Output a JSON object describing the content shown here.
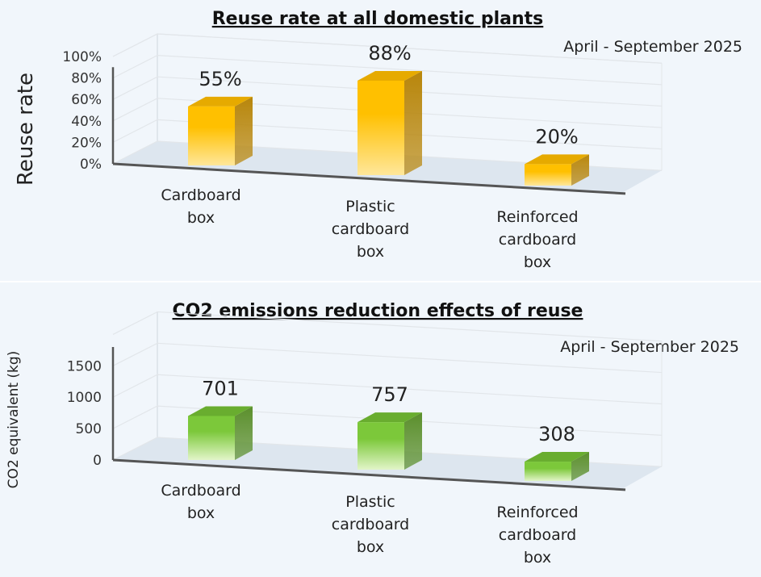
{
  "chart_data": [
    {
      "type": "bar",
      "title": "Reuse rate at all domestic plants",
      "subtitle": "April - September  2025",
      "ylabel": "Reuse rate",
      "xlabel": "",
      "categories": [
        [
          "Cardboard",
          "box"
        ],
        [
          "Plastic",
          "cardboard",
          "box"
        ],
        [
          "Reinforced",
          "cardboard",
          "box"
        ]
      ],
      "values": [
        55,
        88,
        20
      ],
      "value_labels": [
        "55%",
        "88%",
        "20%"
      ],
      "yticks": [
        "0%",
        "20%",
        "40%",
        "60%",
        "80%",
        "100%"
      ],
      "ytick_values": [
        0,
        20,
        40,
        60,
        80,
        100
      ],
      "ylim": [
        0,
        100
      ],
      "grid": true,
      "colors": {
        "front": "#ffc000",
        "front_light": "#ffe79a",
        "side": "#b8860b",
        "top": "#e6aa00"
      }
    },
    {
      "type": "bar",
      "title": "CO2 emissions reduction effects of reuse",
      "subtitle": "April - September 2025",
      "ylabel": "CO2 equivalent (kg)",
      "xlabel": "",
      "categories": [
        [
          "Cardboard",
          "box"
        ],
        [
          "Plastic",
          "cardboard",
          "box"
        ],
        [
          "Reinforced",
          "cardboard",
          "box"
        ]
      ],
      "values": [
        701,
        757,
        308
      ],
      "value_labels": [
        "701",
        "757",
        "308"
      ],
      "yticks": [
        "0",
        "500",
        "1000",
        "1500"
      ],
      "ytick_values": [
        0,
        500,
        1000,
        1500
      ],
      "ylim": [
        0,
        2000
      ],
      "grid": true,
      "colors": {
        "front": "#7cc83a",
        "front_light": "#e2f5c8",
        "side": "#5b8f2c",
        "top": "#69ad2f"
      }
    }
  ]
}
